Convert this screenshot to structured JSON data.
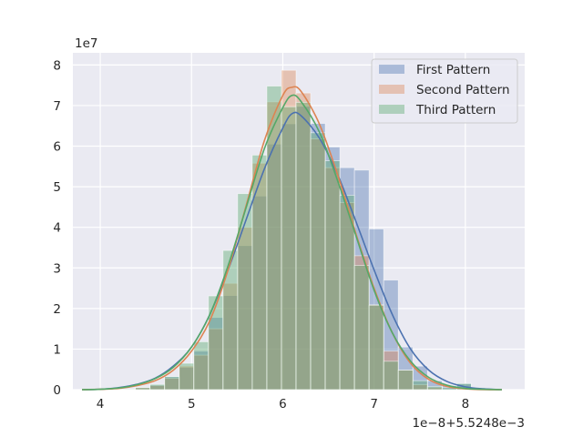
{
  "chart_data": {
    "type": "bar",
    "subtype": "overlaid histogram with KDE curves",
    "x_offset_label": "1e−8+5.5248e−3",
    "y_scale_label": "1e7",
    "xlim": [
      3.7,
      8.65
    ],
    "ylim": [
      0,
      8.3
    ],
    "x_ticks": [
      4,
      5,
      6,
      7,
      8
    ],
    "y_ticks": [
      0,
      1,
      2,
      3,
      4,
      5,
      6,
      7,
      8
    ],
    "bin_edges": [
      3.905,
      4.065,
      4.225,
      4.385,
      4.545,
      4.705,
      4.865,
      5.025,
      5.185,
      5.345,
      5.505,
      5.665,
      5.825,
      5.985,
      6.145,
      6.305,
      6.465,
      6.625,
      6.785,
      6.945,
      7.105,
      7.265,
      7.425,
      7.585,
      7.745,
      7.905,
      8.065
    ],
    "grid": true,
    "legend_position": "top-right",
    "series": [
      {
        "name": "First Pattern",
        "color": "#4c72b0",
        "bar_values": [
          0.0,
          0.0,
          0.01,
          0.05,
          0.12,
          0.32,
          0.55,
          0.95,
          1.78,
          2.32,
          3.55,
          4.77,
          6.05,
          6.55,
          6.98,
          6.56,
          5.98,
          5.47,
          5.41,
          3.96,
          2.7,
          1.05,
          0.58,
          0.22,
          0.1,
          0.15
        ],
        "kde_x": [
          3.8,
          4.0,
          4.2,
          4.4,
          4.6,
          4.8,
          5.0,
          5.2,
          5.4,
          5.6,
          5.8,
          6.0,
          6.1,
          6.2,
          6.4,
          6.6,
          6.8,
          7.0,
          7.2,
          7.4,
          7.6,
          7.8,
          8.0,
          8.2,
          8.4
        ],
        "kde_y": [
          0.0,
          0.01,
          0.05,
          0.13,
          0.28,
          0.58,
          1.05,
          1.85,
          2.95,
          4.2,
          5.45,
          6.45,
          6.8,
          6.75,
          6.2,
          5.3,
          4.15,
          2.95,
          1.85,
          1.0,
          0.48,
          0.2,
          0.07,
          0.02,
          0.0
        ]
      },
      {
        "name": "Second Pattern",
        "color": "#dd8452",
        "bar_values": [
          0.0,
          0.0,
          0.0,
          0.05,
          0.1,
          0.28,
          0.58,
          0.85,
          1.5,
          2.62,
          4.0,
          5.58,
          7.09,
          7.87,
          7.31,
          6.18,
          5.47,
          4.61,
          3.3,
          2.09,
          0.95,
          0.48,
          0.12,
          0.05,
          0.0,
          0.0
        ],
        "kde_x": [
          3.8,
          4.0,
          4.2,
          4.4,
          4.6,
          4.8,
          5.0,
          5.2,
          5.4,
          5.6,
          5.8,
          6.0,
          6.1,
          6.2,
          6.4,
          6.6,
          6.8,
          7.0,
          7.2,
          7.4,
          7.6,
          7.8,
          8.0,
          8.2,
          8.4
        ],
        "kde_y": [
          0.0,
          0.01,
          0.03,
          0.1,
          0.22,
          0.48,
          0.95,
          1.7,
          2.95,
          4.55,
          6.15,
          7.25,
          7.45,
          7.35,
          6.55,
          5.3,
          3.85,
          2.5,
          1.4,
          0.65,
          0.25,
          0.08,
          0.02,
          0.0,
          0.0
        ]
      },
      {
        "name": "Third Pattern",
        "color": "#55a868",
        "bar_values": [
          0.0,
          0.0,
          0.01,
          0.05,
          0.13,
          0.32,
          0.65,
          1.18,
          2.31,
          3.43,
          4.83,
          5.78,
          7.48,
          6.97,
          7.08,
          6.33,
          5.64,
          4.79,
          3.06,
          2.08,
          0.7,
          0.48,
          0.22,
          0.08,
          0.05,
          0.15
        ],
        "kde_x": [
          3.8,
          4.0,
          4.2,
          4.4,
          4.6,
          4.8,
          5.0,
          5.2,
          5.4,
          5.6,
          5.8,
          6.0,
          6.1,
          6.2,
          6.4,
          6.6,
          6.8,
          7.0,
          7.2,
          7.4,
          7.6,
          7.8,
          8.0,
          8.2,
          8.4
        ],
        "kde_y": [
          0.0,
          0.01,
          0.04,
          0.12,
          0.27,
          0.55,
          1.05,
          1.85,
          3.05,
          4.5,
          5.95,
          6.95,
          7.25,
          7.1,
          6.35,
          5.15,
          3.8,
          2.45,
          1.4,
          0.7,
          0.3,
          0.11,
          0.03,
          0.01,
          0.0
        ]
      }
    ]
  }
}
